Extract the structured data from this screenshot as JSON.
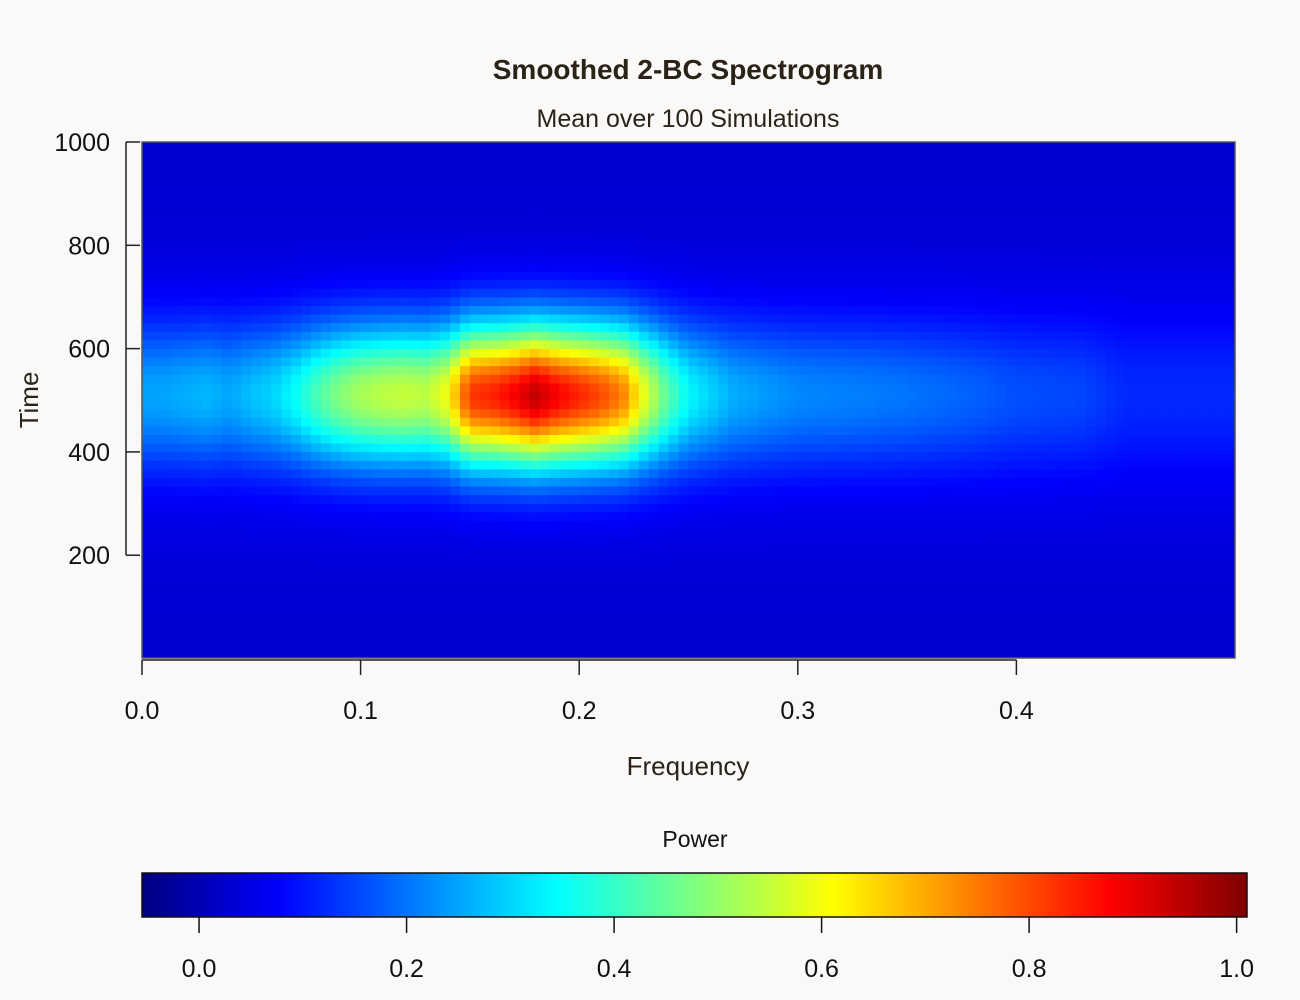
{
  "chart_data": {
    "type": "heatmap",
    "title": "Smoothed 2-BC Spectrogram",
    "subtitle": "Mean over 100 Simulations",
    "xlabel": "Frequency",
    "ylabel": "Time",
    "xlim": [
      0,
      0.5
    ],
    "ylim": [
      1,
      1000
    ],
    "x_ticks": [
      "0.0",
      "0.1",
      "0.2",
      "0.3",
      "0.4"
    ],
    "x_tick_values": [
      0.0,
      0.1,
      0.2,
      0.3,
      0.4
    ],
    "y_ticks": [
      "200",
      "400",
      "600",
      "800",
      "1000"
    ],
    "y_tick_values": [
      200,
      400,
      600,
      800,
      1000
    ],
    "colorbar": {
      "label": "Power",
      "range": [
        -0.055,
        1.01
      ],
      "ticks": [
        "0.0",
        "0.2",
        "0.4",
        "0.6",
        "0.8",
        "1.0"
      ],
      "tick_values": [
        0.0,
        0.2,
        0.4,
        0.6,
        0.8,
        1.0
      ],
      "colormap": [
        "#00007f",
        "#0000ff",
        "#007fff",
        "#00ffff",
        "#7fff7f",
        "#ffff00",
        "#ff7f00",
        "#ff0000",
        "#7f0000"
      ]
    },
    "frequency_profile": {
      "freq": [
        0.0,
        0.01,
        0.02,
        0.03,
        0.04,
        0.05,
        0.06,
        0.07,
        0.08,
        0.09,
        0.1,
        0.11,
        0.12,
        0.13,
        0.14,
        0.15,
        0.16,
        0.17,
        0.18,
        0.19,
        0.2,
        0.21,
        0.22,
        0.23,
        0.24,
        0.25,
        0.27,
        0.3,
        0.33,
        0.35,
        0.38,
        0.4,
        0.43,
        0.45,
        0.48,
        0.5
      ],
      "power": [
        0.25,
        0.25,
        0.26,
        0.27,
        0.25,
        0.28,
        0.3,
        0.35,
        0.42,
        0.48,
        0.52,
        0.54,
        0.55,
        0.54,
        0.6,
        0.82,
        0.84,
        0.88,
        0.94,
        0.88,
        0.84,
        0.8,
        0.74,
        0.58,
        0.44,
        0.34,
        0.26,
        0.22,
        0.21,
        0.2,
        0.18,
        0.16,
        0.15,
        0.12,
        0.12,
        0.12
      ]
    },
    "time_peak": 510,
    "time_spread": 95
  }
}
